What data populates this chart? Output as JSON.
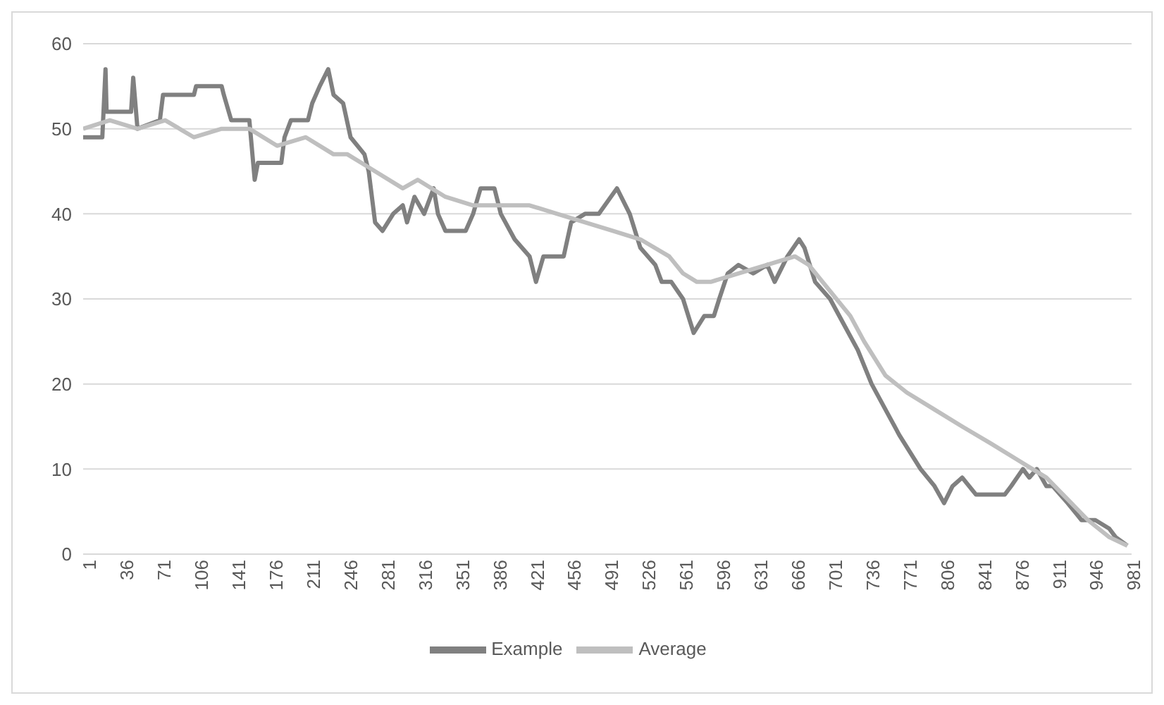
{
  "chart_data": {
    "type": "line",
    "xlim": [
      1,
      985
    ],
    "xticks": [
      1,
      36,
      71,
      106,
      141,
      176,
      211,
      246,
      281,
      316,
      351,
      386,
      421,
      456,
      491,
      526,
      561,
      596,
      631,
      666,
      701,
      736,
      771,
      806,
      841,
      876,
      911,
      946,
      981
    ],
    "ylim": [
      0,
      60
    ],
    "yticks": [
      0,
      10,
      20,
      30,
      40,
      50,
      60
    ],
    "grid": "y",
    "legend": "bottom",
    "marker": "none",
    "line_style": "solid",
    "series": [
      {
        "name": "Example",
        "color": "#808080",
        "x": [
          1,
          19,
          22,
          23,
          46,
          48,
          52,
          73,
          76,
          105,
          107,
          131,
          133,
          140,
          157,
          162,
          165,
          187,
          190,
          196,
          212,
          216,
          223,
          231,
          236,
          245,
          252,
          265,
          269,
          275,
          282,
          292,
          301,
          305,
          312,
          321,
          330,
          334,
          341,
          360,
          367,
          374,
          387,
          393,
          406,
          420,
          426,
          433,
          452,
          459,
          472,
          485,
          502,
          514,
          524,
          538,
          544,
          553,
          564,
          574,
          584,
          593,
          598,
          606,
          616,
          630,
          643,
          650,
          662,
          673,
          678,
          688,
          702,
          715,
          728,
          741,
          754,
          767,
          787,
          800,
          809,
          817,
          826,
          839,
          866,
          872,
          883,
          889,
          896,
          905,
          911,
          925,
          938,
          951,
          964,
          970,
          981
        ],
        "values": [
          49,
          49,
          57,
          52,
          52,
          56,
          50,
          51,
          54,
          54,
          55,
          55,
          54,
          51,
          51,
          44,
          46,
          46,
          49,
          51,
          51,
          53,
          55,
          57,
          54,
          53,
          49,
          47,
          45,
          39,
          38,
          40,
          41,
          39,
          42,
          40,
          43,
          40,
          38,
          38,
          40,
          43,
          43,
          40,
          37,
          35,
          32,
          35,
          35,
          39,
          40,
          40,
          43,
          40,
          36,
          34,
          32,
          32,
          30,
          26,
          28,
          28,
          30,
          33,
          34,
          33,
          34,
          32,
          35,
          37,
          36,
          32,
          30,
          27,
          24,
          20,
          17,
          14,
          10,
          8,
          6,
          8,
          9,
          7,
          7,
          8,
          10,
          9,
          10,
          8,
          8,
          6,
          4,
          4,
          3,
          2,
          1
        ]
      },
      {
        "name": "Average",
        "color": "#bfbfbf",
        "x": [
          1,
          26,
          52,
          78,
          105,
          131,
          157,
          183,
          210,
          236,
          249,
          275,
          301,
          315,
          341,
          367,
          393,
          420,
          446,
          472,
          498,
          524,
          551,
          564,
          577,
          590,
          616,
          643,
          669,
          682,
          695,
          721,
          734,
          754,
          774,
          800,
          826,
          853,
          879,
          892,
          905,
          944,
          964,
          981
        ],
        "values": [
          50,
          51,
          50,
          51,
          49,
          50,
          50,
          48,
          49,
          47,
          47,
          45,
          43,
          44,
          42,
          41,
          41,
          41,
          40,
          39,
          38,
          37,
          35,
          33,
          32,
          32,
          33,
          34,
          35,
          34,
          32,
          28,
          25,
          21,
          19,
          17,
          15,
          13,
          11,
          10,
          9,
          4,
          2,
          1
        ]
      }
    ]
  }
}
